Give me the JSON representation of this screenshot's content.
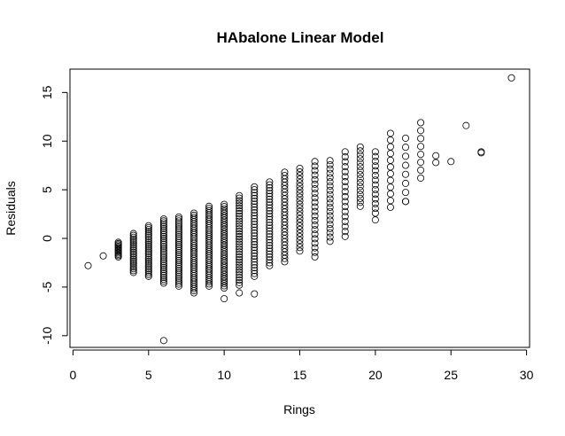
{
  "chart_data": {
    "type": "scatter",
    "title": "HAbalone Linear Model",
    "xlabel": "Rings",
    "ylabel": "Residuals",
    "xlim": [
      -0.2,
      30.2
    ],
    "ylim": [
      -11.2,
      17.4
    ],
    "xticks": [
      0,
      5,
      10,
      15,
      20,
      25,
      30
    ],
    "yticks": [
      -10,
      -5,
      0,
      5,
      10,
      15
    ],
    "grid": false,
    "legend": "none",
    "marker": "open-circle",
    "series": [
      {
        "columns": [
          {
            "x": 1,
            "ymin": -2.8,
            "ymax": -2.8,
            "n": 1
          },
          {
            "x": 2,
            "ymin": -1.8,
            "ymax": -1.8,
            "n": 1
          },
          {
            "x": 3,
            "ymin": -1.9,
            "ymax": -0.4,
            "n": 12
          },
          {
            "x": 4,
            "ymin": -3.5,
            "ymax": 0.5,
            "n": 22
          },
          {
            "x": 5,
            "ymin": -3.9,
            "ymax": 1.3,
            "n": 28
          },
          {
            "x": 6,
            "ymin": -4.6,
            "ymax": 2.0,
            "n": 34
          },
          {
            "x": 7,
            "ymin": -4.9,
            "ymax": 2.2,
            "n": 36
          },
          {
            "x": 8,
            "ymin": -5.6,
            "ymax": 2.6,
            "n": 38
          },
          {
            "x": 9,
            "ymin": -4.9,
            "ymax": 3.3,
            "n": 38
          },
          {
            "x": 10,
            "ymin": -5.1,
            "ymax": 3.5,
            "n": 38
          },
          {
            "x": 11,
            "ymin": -4.8,
            "ymax": 4.4,
            "n": 36
          },
          {
            "x": 12,
            "ymin": -3.9,
            "ymax": 5.3,
            "n": 32
          },
          {
            "x": 13,
            "ymin": -2.8,
            "ymax": 5.8,
            "n": 30
          },
          {
            "x": 14,
            "ymin": -2.4,
            "ymax": 6.8,
            "n": 28
          },
          {
            "x": 15,
            "ymin": -1.3,
            "ymax": 7.2,
            "n": 24
          },
          {
            "x": 16,
            "ymin": -1.9,
            "ymax": 7.9,
            "n": 22
          },
          {
            "x": 17,
            "ymin": -0.3,
            "ymax": 8.0,
            "n": 20
          },
          {
            "x": 18,
            "ymin": 0.2,
            "ymax": 8.9,
            "n": 18
          },
          {
            "x": 19,
            "ymin": 3.3,
            "ymax": 9.4,
            "n": 16
          },
          {
            "x": 20,
            "ymin": 2.6,
            "ymax": 8.9,
            "n": 14
          },
          {
            "x": 21,
            "ymin": 3.2,
            "ymax": 10.8,
            "n": 12
          },
          {
            "x": 22,
            "ymin": 3.8,
            "ymax": 10.3,
            "n": 8
          },
          {
            "x": 23,
            "ymin": 6.2,
            "ymax": 11.9,
            "n": 8
          }
        ],
        "points": [
          {
            "x": 6,
            "y": -10.5
          },
          {
            "x": 10,
            "y": -6.2
          },
          {
            "x": 11,
            "y": -5.6
          },
          {
            "x": 12,
            "y": -5.7
          },
          {
            "x": 20,
            "y": 1.9
          },
          {
            "x": 22,
            "y": 3.8
          },
          {
            "x": 24,
            "y": 7.8
          },
          {
            "x": 24,
            "y": 8.5
          },
          {
            "x": 25,
            "y": 7.9
          },
          {
            "x": 26,
            "y": 11.6
          },
          {
            "x": 27,
            "y": 8.8
          },
          {
            "x": 27,
            "y": 8.9
          },
          {
            "x": 29,
            "y": 16.5
          }
        ]
      }
    ]
  }
}
